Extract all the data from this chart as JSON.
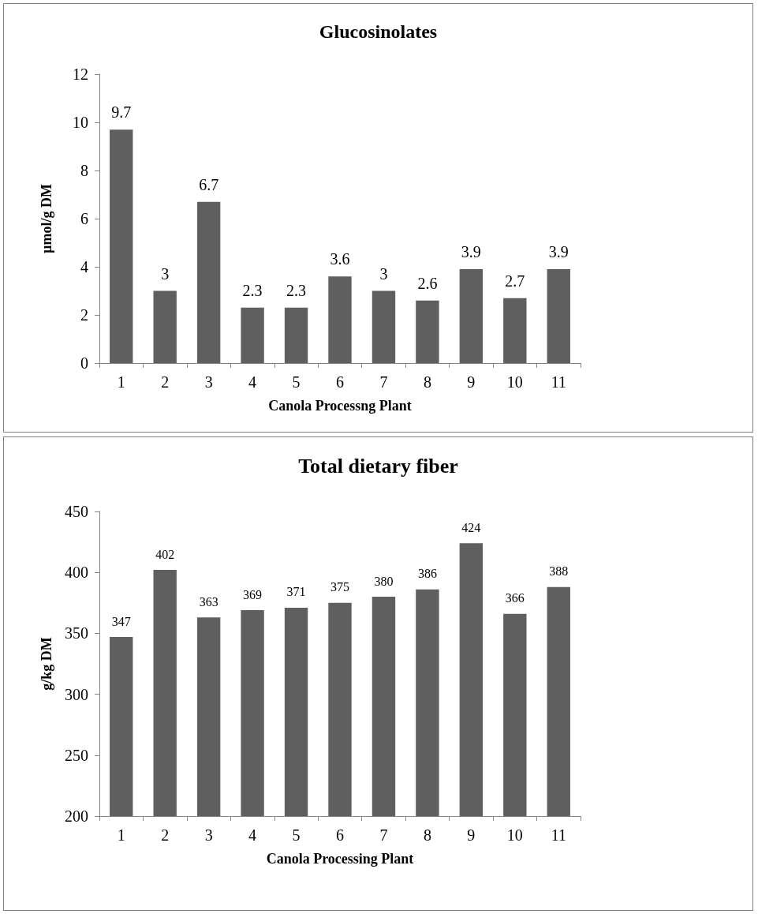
{
  "chart_data": [
    {
      "type": "bar",
      "title": "Glucosinolates",
      "xlabel": "Canola Processng Plant",
      "ylabel": "µmol/g DM",
      "categories": [
        "1",
        "2",
        "3",
        "4",
        "5",
        "6",
        "7",
        "8",
        "9",
        "10",
        "11"
      ],
      "values": [
        9.7,
        3,
        6.7,
        2.3,
        2.3,
        3.6,
        3,
        2.6,
        3.9,
        2.7,
        3.9
      ],
      "color": "#5f5f5f",
      "ylim": [
        0,
        12
      ],
      "yticks": [
        0,
        2,
        4,
        6,
        8,
        10,
        12
      ],
      "grid": false,
      "data_labels": true
    },
    {
      "type": "bar",
      "title": "Total dietary fiber",
      "xlabel": "Canola Processing Plant",
      "ylabel": "g/kg DM",
      "categories": [
        "1",
        "2",
        "3",
        "4",
        "5",
        "6",
        "7",
        "8",
        "9",
        "10",
        "11"
      ],
      "values": [
        347,
        402,
        363,
        369,
        371,
        375,
        380,
        386,
        424,
        366,
        388
      ],
      "color": "#5f5f5f",
      "ylim": [
        200,
        450
      ],
      "yticks": [
        200,
        250,
        300,
        350,
        400,
        450
      ],
      "grid": false,
      "data_labels": true
    }
  ]
}
